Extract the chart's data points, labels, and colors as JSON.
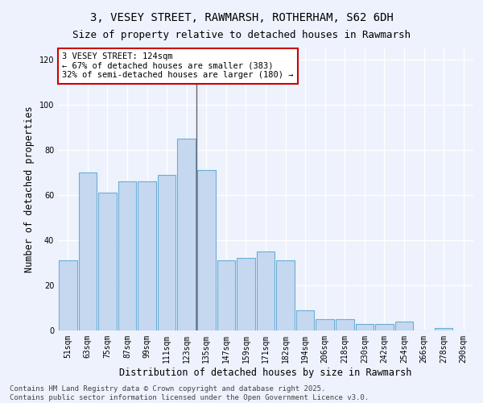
{
  "title1": "3, VESEY STREET, RAWMARSH, ROTHERHAM, S62 6DH",
  "title2": "Size of property relative to detached houses in Rawmarsh",
  "xlabel": "Distribution of detached houses by size in Rawmarsh",
  "ylabel": "Number of detached properties",
  "categories": [
    "51sqm",
    "63sqm",
    "75sqm",
    "87sqm",
    "99sqm",
    "111sqm",
    "123sqm",
    "135sqm",
    "147sqm",
    "159sqm",
    "171sqm",
    "182sqm",
    "194sqm",
    "206sqm",
    "218sqm",
    "230sqm",
    "242sqm",
    "254sqm",
    "266sqm",
    "278sqm",
    "290sqm"
  ],
  "values": [
    31,
    70,
    61,
    66,
    66,
    69,
    85,
    71,
    31,
    32,
    35,
    31,
    9,
    5,
    5,
    3,
    3,
    4,
    0,
    1,
    0
  ],
  "bar_color": "#c5d8f0",
  "bar_edge_color": "#6aaed6",
  "vline_index": 6.5,
  "marker_label": "3 VESEY STREET: 124sqm",
  "annotation_line1": "← 67% of detached houses are smaller (383)",
  "annotation_line2": "32% of semi-detached houses are larger (180) →",
  "annotation_box_color": "#ffffff",
  "annotation_box_edge_color": "#cc0000",
  "vline_color": "#666666",
  "ylim": [
    0,
    125
  ],
  "yticks": [
    0,
    20,
    40,
    60,
    80,
    100,
    120
  ],
  "background_color": "#edf2fc",
  "grid_color": "#ffffff",
  "footer_line1": "Contains HM Land Registry data © Crown copyright and database right 2025.",
  "footer_line2": "Contains public sector information licensed under the Open Government Licence v3.0.",
  "title1_fontsize": 10,
  "title2_fontsize": 9,
  "xlabel_fontsize": 8.5,
  "ylabel_fontsize": 8.5,
  "tick_fontsize": 7,
  "annotation_fontsize": 7.5,
  "footer_fontsize": 6.5
}
